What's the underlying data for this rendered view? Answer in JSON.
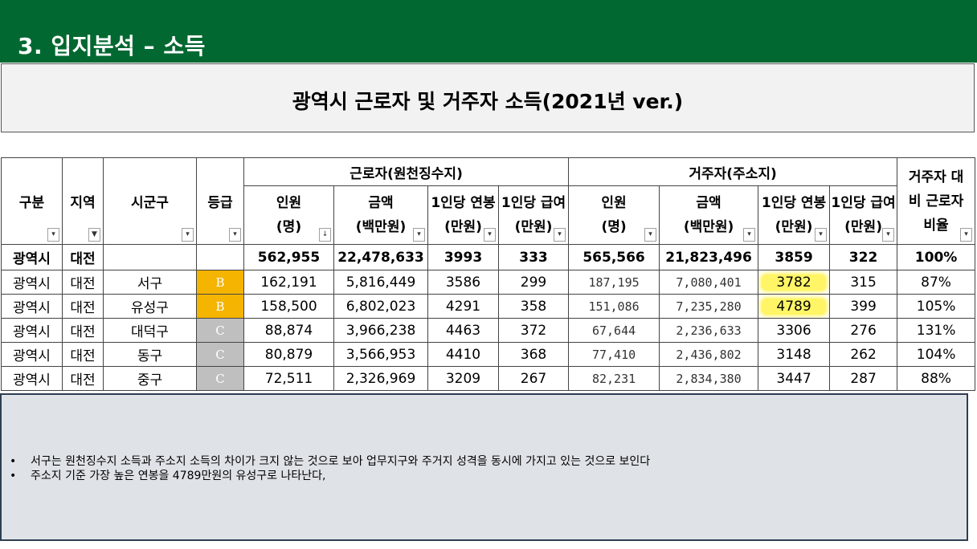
{
  "header": {
    "title": "3. 입지분석 – 소득"
  },
  "table_title": "광역시 근로자 및 거주자 소득(2021년 ver.)",
  "columns": {
    "gubun": "구분",
    "region": "지역",
    "district": "시군구",
    "grade": "등급",
    "worker_group": "근로자(원천징수지)",
    "resident_group": "거주자(주소지)",
    "ratio": "거주자 대비 근로자 비율",
    "people_line1": "인원",
    "people_line2": "(명)",
    "amount_line1": "금액",
    "amount_line2": "(백만원)",
    "salary_line1": "1인당 연봉",
    "salary_line2": "(만원)",
    "pay_line1": "1인당 급여",
    "pay_line2": "(만원)"
  },
  "total_row": {
    "gubun": "광역시",
    "region": "대전",
    "district": "",
    "grade": "",
    "w_people": "562,955",
    "w_amount": "22,478,633",
    "w_salary": "3993",
    "w_pay": "333",
    "r_people": "565,566",
    "r_amount": "21,823,496",
    "r_salary": "3859",
    "r_pay": "322",
    "ratio": "100%"
  },
  "rows": [
    {
      "gubun": "광역시",
      "region": "대전",
      "district": "서구",
      "grade": "B",
      "w_people": "162,191",
      "w_amount": "5,816,449",
      "w_salary": "3586",
      "w_pay": "299",
      "r_people": "187,195",
      "r_amount": "7,080,401",
      "r_salary": "3782",
      "r_pay": "315",
      "ratio": "87%"
    },
    {
      "gubun": "광역시",
      "region": "대전",
      "district": "유성구",
      "grade": "B",
      "w_people": "158,500",
      "w_amount": "6,802,023",
      "w_salary": "4291",
      "w_pay": "358",
      "r_people": "151,086",
      "r_amount": "7,235,280",
      "r_salary": "4789",
      "r_pay": "399",
      "ratio": "105%"
    },
    {
      "gubun": "광역시",
      "region": "대전",
      "district": "대덕구",
      "grade": "C",
      "w_people": "88,874",
      "w_amount": "3,966,238",
      "w_salary": "4463",
      "w_pay": "372",
      "r_people": "67,644",
      "r_amount": "2,236,633",
      "r_salary": "3306",
      "r_pay": "276",
      "ratio": "131%"
    },
    {
      "gubun": "광역시",
      "region": "대전",
      "district": "동구",
      "grade": "C",
      "w_people": "80,879",
      "w_amount": "3,566,953",
      "w_salary": "4410",
      "w_pay": "368",
      "r_people": "77,410",
      "r_amount": "2,436,802",
      "r_salary": "3148",
      "r_pay": "262",
      "ratio": "104%"
    },
    {
      "gubun": "광역시",
      "region": "대전",
      "district": "중구",
      "grade": "C",
      "w_people": "72,511",
      "w_amount": "2,326,969",
      "w_salary": "3209",
      "w_pay": "267",
      "r_people": "82,231",
      "r_amount": "2,834,380",
      "r_salary": "3447",
      "r_pay": "287",
      "ratio": "88%"
    }
  ],
  "notes": [
    "서구는 원천징수지 소득과 주소지 소득의 차이가 크지 않는 것으로 보아 업무지구와 주거지 성격을 동시에 가지고 있는 것으로 보인다",
    "주소지 기준 가장 높은 연봉을 4789만원의 유성구로 나타난다,"
  ],
  "bullet_symbol": "•",
  "colors": {
    "header_green": "#006830",
    "grade_b": "#f4b400",
    "grade_c": "#bfbfbf",
    "highlight": "#fff566",
    "note_bg": "#dfe3e8"
  }
}
